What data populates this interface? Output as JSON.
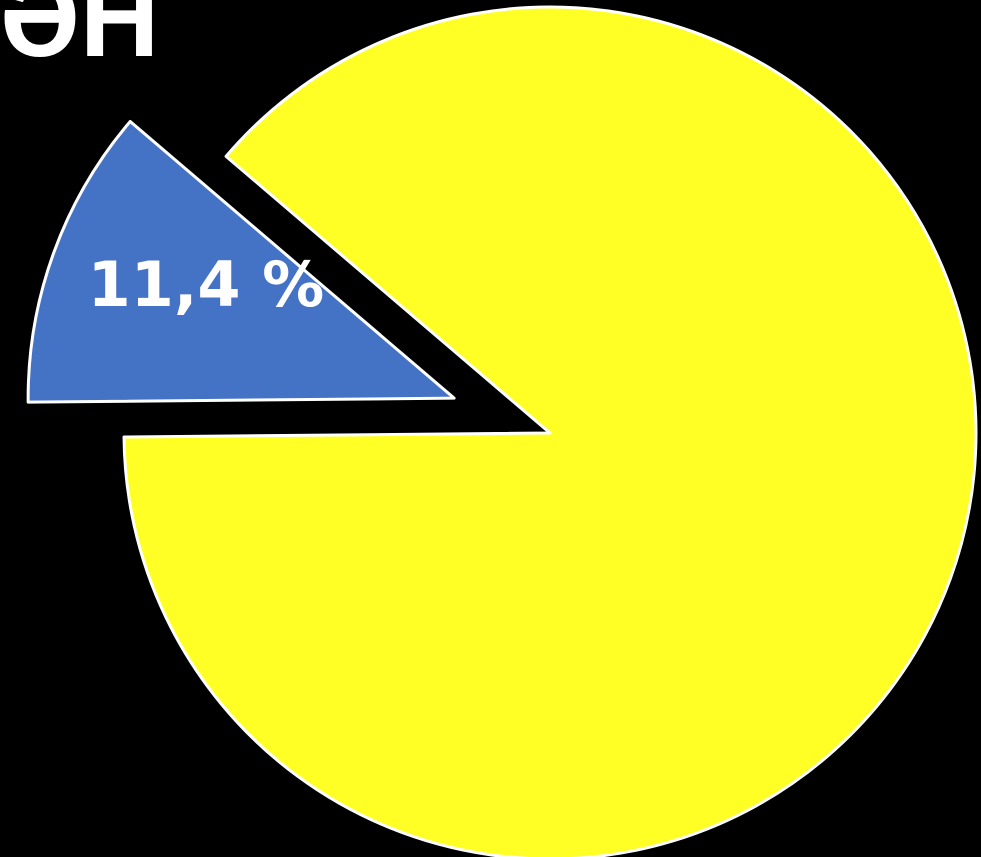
{
  "title_fragment": "ƏH",
  "chart_data": {
    "type": "pie",
    "title": "",
    "slices": [
      {
        "label": "11,4 %",
        "value": 11.4,
        "color": "#4472C4",
        "exploded": true
      },
      {
        "label": "",
        "value": 88.6,
        "color": "#FFFF25",
        "exploded": false
      }
    ],
    "start_angle_deg": 139.5,
    "stroke_color": "#ffffff"
  }
}
